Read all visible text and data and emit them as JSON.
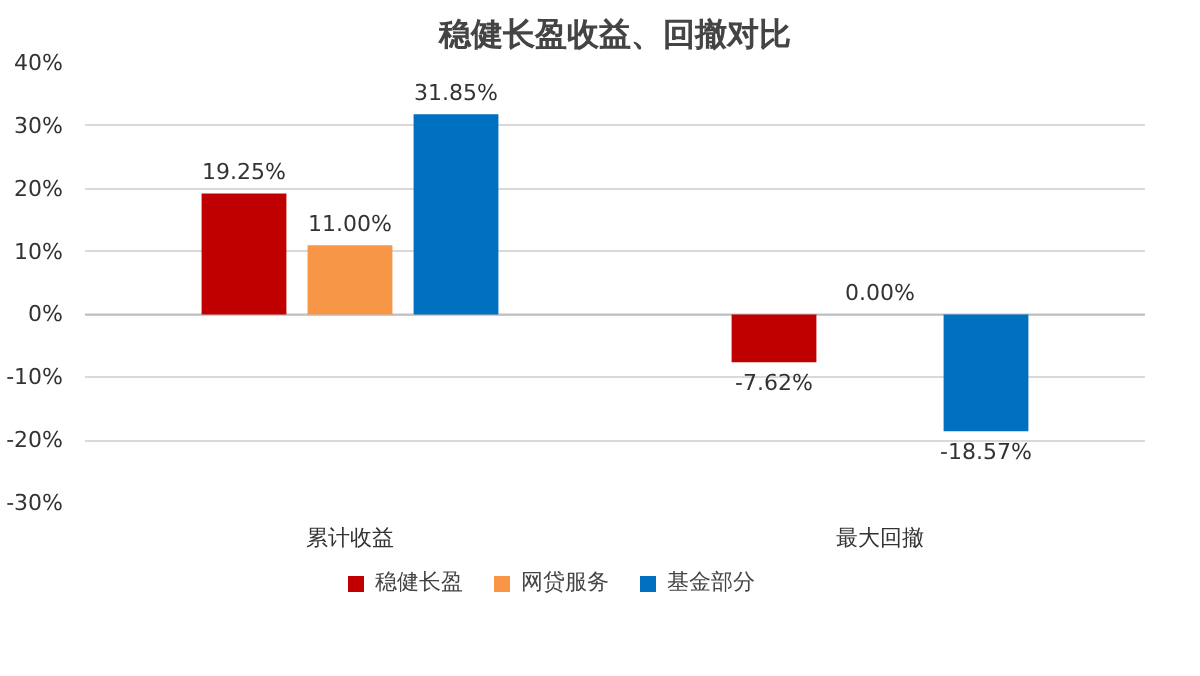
{
  "chart_data": {
    "type": "bar",
    "title": "稳健长盈收益、回撤对比",
    "categories": [
      "累计收益",
      "最大回撤"
    ],
    "series": [
      {
        "name": "稳健长盈",
        "color": "#c00000",
        "values": [
          19.25,
          -7.62
        ],
        "value_labels": [
          "19.25%",
          "-7.62%"
        ]
      },
      {
        "name": "网贷服务",
        "color": "#f79646",
        "values": [
          11.0,
          0.0
        ],
        "value_labels": [
          "11.00%",
          "0.00%"
        ]
      },
      {
        "name": "基金部分",
        "color": "#0070c0",
        "values": [
          31.85,
          -18.57
        ],
        "value_labels": [
          "31.85%",
          "-18.57%"
        ]
      }
    ],
    "ylim": [
      -30,
      40
    ],
    "yticks": [
      {
        "value": -30,
        "label": "-30%"
      },
      {
        "value": -20,
        "label": "-20%"
      },
      {
        "value": -10,
        "label": "-10%"
      },
      {
        "value": 0,
        "label": "0%"
      },
      {
        "value": 10,
        "label": "10%"
      },
      {
        "value": 20,
        "label": "20%"
      },
      {
        "value": 30,
        "label": "30%"
      },
      {
        "value": 40,
        "label": "40%"
      }
    ],
    "grid": "y",
    "legend": "bottom"
  }
}
